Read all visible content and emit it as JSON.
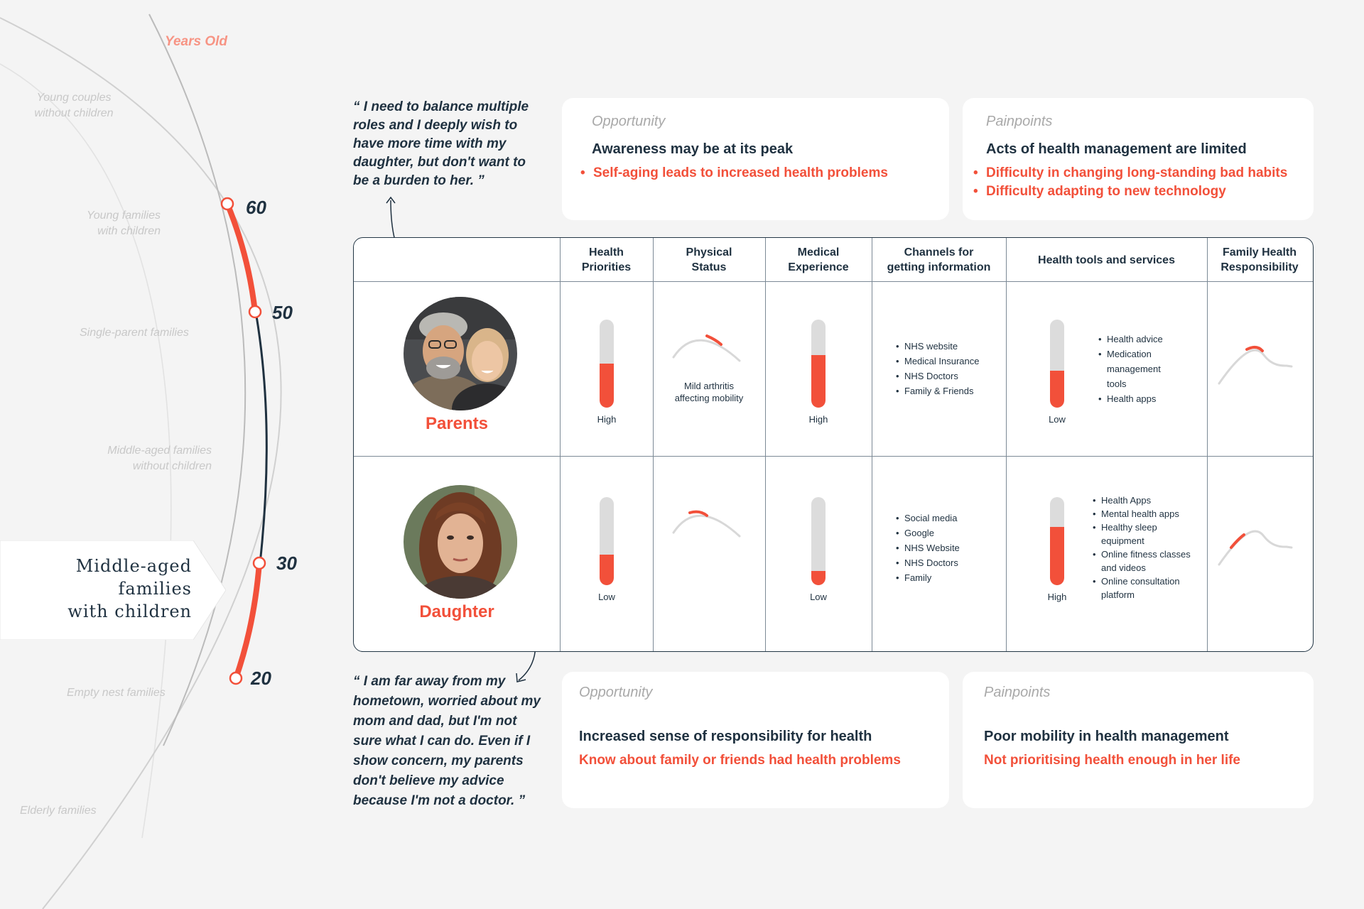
{
  "timeline": {
    "years_label": "Years Old",
    "stages": [
      "Young couples\nwithout children",
      "Young families\nwith children",
      "Single-parent families",
      "Middle-aged families\nwithout children",
      "Empty nest families",
      "Elderly families"
    ],
    "ages": [
      "60",
      "50",
      "30",
      "20"
    ],
    "current_stage": [
      "Middle-aged",
      "families",
      "with children"
    ]
  },
  "quotes": {
    "parents": "“ I need to balance multiple roles and I deeply wish to have more time with my daughter, but don't want to be a burden to her. ”",
    "daughter": "“ I am far away from my hometown, worried about my mom and dad, but I'm not sure what I can do. Even if I show concern, my parents don't believe my advice because I'm not a doctor. ”"
  },
  "cards": {
    "top_opportunity": {
      "label": "Opportunity",
      "heading": "Awareness may be at its peak",
      "points": [
        "Self-aging leads to increased health problems"
      ]
    },
    "top_painpoints": {
      "label": "Painpoints",
      "heading": "Acts of health management are limited",
      "points": [
        "Difficulty in changing long-standing bad habits",
        "Difficulty adapting to new technology"
      ]
    },
    "bottom_opportunity": {
      "label": "Opportunity",
      "heading": "Increased sense of responsibility for health",
      "point": "Know about family or friends had health problems"
    },
    "bottom_painpoints": {
      "label": "Painpoints",
      "heading": "Poor mobility in health management",
      "point": "Not prioritising health enough in her life"
    }
  },
  "table": {
    "columns": [
      "Health\nPriorities",
      "Physical\nStatus",
      "Medical\nExperience",
      "Channels for\ngetting information",
      "Health tools and services",
      "Family Health\nResponsibility"
    ],
    "rows": [
      {
        "name": "Parents",
        "health_priority": {
          "label": "High",
          "level": 0.5
        },
        "physical_note": "Mild arthritis affecting mobility",
        "medical_experience": {
          "label": "High",
          "level": 0.6
        },
        "channels": [
          "NHS website",
          "Medical Insurance",
          "NHS Doctors",
          "Family & Friends"
        ],
        "tools_level": {
          "label": "Low",
          "level": 0.42
        },
        "tools": [
          "Health advice",
          "Medication management tools",
          "Health apps"
        ]
      },
      {
        "name": "Daughter",
        "health_priority": {
          "label": "Low",
          "level": 0.35
        },
        "physical_note": "",
        "medical_experience": {
          "label": "Low",
          "level": 0.16
        },
        "channels": [
          "Social media",
          "Google",
          "NHS Website",
          "NHS Doctors",
          "Family"
        ],
        "tools_level": {
          "label": "High",
          "level": 0.66
        },
        "tools": [
          "Health Apps",
          "Mental health apps",
          "Healthy sleep equipment",
          "Online fitness classes and videos",
          "Online consultation platform"
        ]
      }
    ]
  },
  "colors": {
    "accent": "#f2503a",
    "text": "#1f3140",
    "muted": "#c8c8c8"
  }
}
